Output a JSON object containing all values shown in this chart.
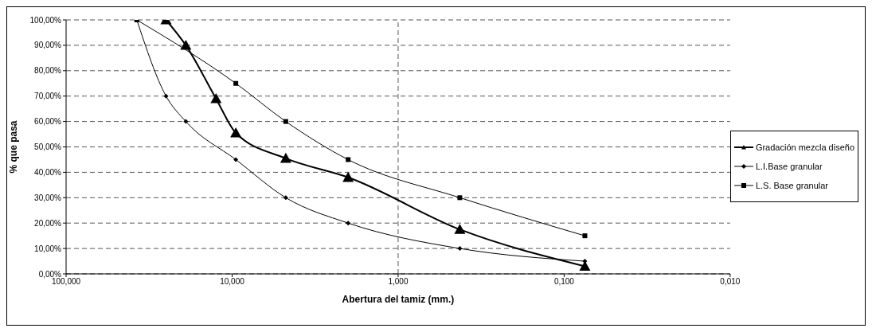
{
  "chart_data": {
    "type": "line",
    "xlabel": "Abertura del tamiz (mm.)",
    "ylabel": "% que pasa",
    "log": "x",
    "xlim": [
      100,
      0.01
    ],
    "xticks": [
      {
        "value": 100,
        "label": "100,000"
      },
      {
        "value": 10,
        "label": "10,000"
      },
      {
        "value": 1,
        "label": "1,000"
      },
      {
        "value": 0.1,
        "label": "0,100"
      },
      {
        "value": 0.01,
        "label": "0,010"
      }
    ],
    "ylim": [
      0,
      100
    ],
    "yticks": [
      {
        "value": 0,
        "label": "0,00%"
      },
      {
        "value": 10,
        "label": "10,00%"
      },
      {
        "value": 20,
        "label": "20,00%"
      },
      {
        "value": 30,
        "label": "30,00%"
      },
      {
        "value": 40,
        "label": "40,00%"
      },
      {
        "value": 50,
        "label": "50,00%"
      },
      {
        "value": 60,
        "label": "60,00%"
      },
      {
        "value": 70,
        "label": "70,00%"
      },
      {
        "value": 80,
        "label": "80,00%"
      },
      {
        "value": 90,
        "label": "90,00%"
      },
      {
        "value": 100,
        "label": "100,00%"
      }
    ],
    "grid": "y",
    "legend": "right",
    "ref_lines": [
      {
        "axis": "x",
        "value": 1,
        "label": null,
        "color": "#555555",
        "line_style": "dashed"
      }
    ],
    "series": [
      {
        "name": "Gradación mezcla diseño",
        "color": "#000000",
        "marker": "triangle",
        "x": [
          25,
          19,
          12.5,
          9.5,
          4.75,
          2,
          0.425,
          0.075
        ],
        "values": [
          100,
          90,
          69,
          55.5,
          45.5,
          38,
          17.5,
          3
        ]
      },
      {
        "name": "L.I.Base granular",
        "color": "#000000",
        "marker": "diamond",
        "x": [
          37.5,
          25,
          19,
          9.5,
          4.75,
          2,
          0.425,
          0.075
        ],
        "values": [
          100,
          70,
          60,
          45,
          30,
          20,
          10,
          5
        ]
      },
      {
        "name": "L.S. Base granular",
        "color": "#000000",
        "marker": "square",
        "x": [
          37.5,
          9.5,
          4.75,
          2,
          0.425,
          0.075
        ],
        "values": [
          100,
          75,
          60,
          45,
          30,
          15
        ]
      }
    ]
  }
}
